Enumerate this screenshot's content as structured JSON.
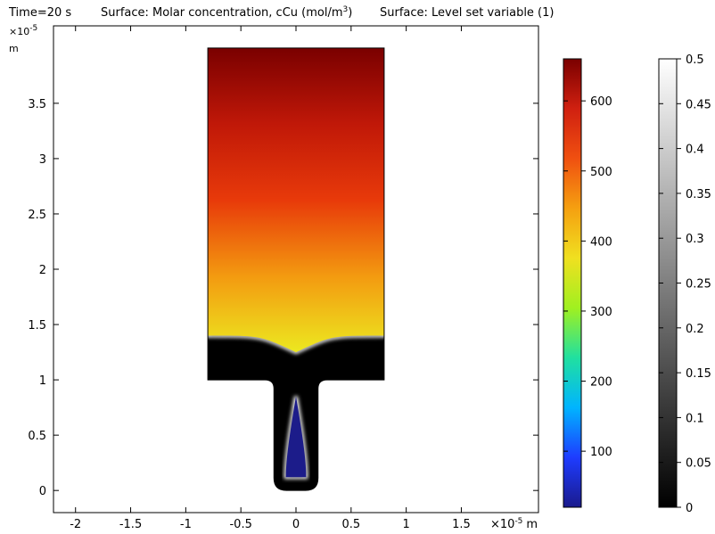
{
  "chart_data": {
    "type": "heatmap",
    "time_label": "Time=20 s",
    "title_surface1_prefix": "Surface: Molar concentration, cCu (mol/m",
    "title_surface1_exp": "3",
    "title_surface1_suffix": ")",
    "title_surface2": "Surface: Level set variable (1)",
    "x_axis": {
      "range": [
        -2.2,
        2.2
      ],
      "ticks": [
        -2,
        -1.5,
        -1,
        -0.5,
        0,
        0.5,
        1,
        1.5
      ],
      "tick_labels": [
        "-2",
        "-1.5",
        "-1",
        "-0.5",
        "0",
        "0.5",
        "1",
        "1.5"
      ],
      "scale_label": "×10",
      "scale_exp": "-5",
      "unit": "m"
    },
    "y_axis": {
      "range": [
        -0.2,
        4.2
      ],
      "ticks": [
        0,
        0.5,
        1,
        1.5,
        2,
        2.5,
        3,
        3.5
      ],
      "tick_labels": [
        "0",
        "0.5",
        "1",
        "1.5",
        "2",
        "2.5",
        "3",
        "3.5"
      ],
      "scale_label": "×10",
      "scale_exp": "-5",
      "unit": "m"
    },
    "geometry": {
      "upper_box": {
        "x": [
          -0.8,
          0.8
        ],
        "y": [
          1.0,
          4.0
        ]
      },
      "trench": {
        "x": [
          -0.2,
          0.2
        ],
        "y": [
          0,
          1.0
        ]
      },
      "electrolyte_front_y": 1.4,
      "dip_y": 1.25,
      "void_tip_y": 0.85,
      "void_bottom_y": 0.12
    },
    "colorbar_concentration": {
      "range": [
        20,
        660
      ],
      "ticks": [
        100,
        200,
        300,
        400,
        500,
        600
      ],
      "tick_labels": [
        "100",
        "200",
        "300",
        "400",
        "500",
        "600"
      ],
      "colormap": [
        "#1a1a8c",
        "#1e3cff",
        "#00b4ff",
        "#20e0a0",
        "#a0f020",
        "#f0e020",
        "#f5a010",
        "#f05010",
        "#d02010",
        "#7a0000"
      ]
    },
    "colorbar_levelset": {
      "range": [
        0,
        0.5
      ],
      "ticks": [
        0,
        0.05,
        0.1,
        0.15,
        0.2,
        0.25,
        0.3,
        0.35,
        0.4,
        0.45,
        0.5
      ],
      "tick_labels": [
        "0",
        "0.05",
        "0.1",
        "0.15",
        "0.2",
        "0.25",
        "0.3",
        "0.35",
        "0.4",
        "0.45",
        "0.5"
      ],
      "colormap": [
        "#000000",
        "#ffffff"
      ]
    }
  }
}
